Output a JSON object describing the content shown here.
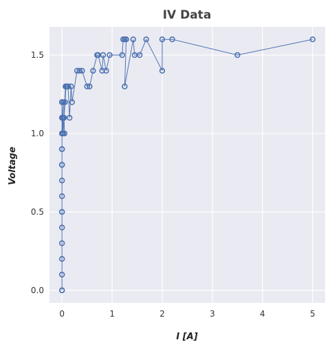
{
  "chart_data": {
    "type": "line",
    "title": "IV Data",
    "xlabel": "I [A]",
    "ylabel": "Voltage",
    "xlim": [
      -0.25,
      5.25
    ],
    "ylim": [
      -0.08,
      1.68
    ],
    "xticks": [
      0,
      1,
      2,
      3,
      4,
      5
    ],
    "xtick_labels": [
      "0",
      "1",
      "2",
      "3",
      "4",
      "5"
    ],
    "yticks": [
      0.0,
      0.5,
      1.0,
      1.5
    ],
    "ytick_labels": [
      "0.0",
      "0.5",
      "1.0",
      "1.5"
    ],
    "grid": true,
    "legend": "none",
    "series": [
      {
        "color": "#4c72b0",
        "marker": "open-circle",
        "x": [
          0.0,
          0.0,
          0.0,
          0.0,
          0.0,
          0.0,
          0.0,
          0.0,
          0.0,
          0.0,
          0.0,
          0.0,
          0.0,
          0.0,
          0.0,
          0.0,
          0.0,
          0.0,
          0.0,
          0.0,
          0.01,
          0.02,
          0.0,
          0.03,
          0.05,
          0.02,
          0.04,
          0.07,
          0.06,
          0.04,
          0.08,
          0.1,
          0.12,
          0.15,
          0.18,
          0.2,
          0.3,
          0.35,
          0.4,
          0.5,
          0.55,
          0.62,
          0.7,
          0.72,
          0.8,
          0.82,
          0.88,
          0.95,
          1.2,
          1.22,
          1.25,
          1.28,
          1.25,
          1.42,
          1.45,
          1.55,
          1.68,
          2.0,
          2.0,
          2.2,
          3.5,
          5.0
        ],
        "y": [
          0.0,
          0.0,
          0.1,
          0.2,
          0.3,
          0.4,
          0.5,
          0.5,
          0.6,
          0.7,
          0.8,
          0.8,
          0.9,
          0.9,
          1.0,
          1.0,
          1.1,
          1.1,
          1.2,
          1.2,
          1.0,
          1.1,
          1.2,
          1.2,
          1.0,
          1.0,
          1.1,
          1.3,
          1.2,
          1.1,
          1.3,
          1.3,
          1.3,
          1.1,
          1.3,
          1.2,
          1.4,
          1.4,
          1.4,
          1.3,
          1.3,
          1.4,
          1.5,
          1.5,
          1.4,
          1.5,
          1.4,
          1.5,
          1.5,
          1.6,
          1.6,
          1.6,
          1.3,
          1.6,
          1.5,
          1.5,
          1.6,
          1.4,
          1.6,
          1.6,
          1.5,
          1.6
        ]
      }
    ]
  }
}
